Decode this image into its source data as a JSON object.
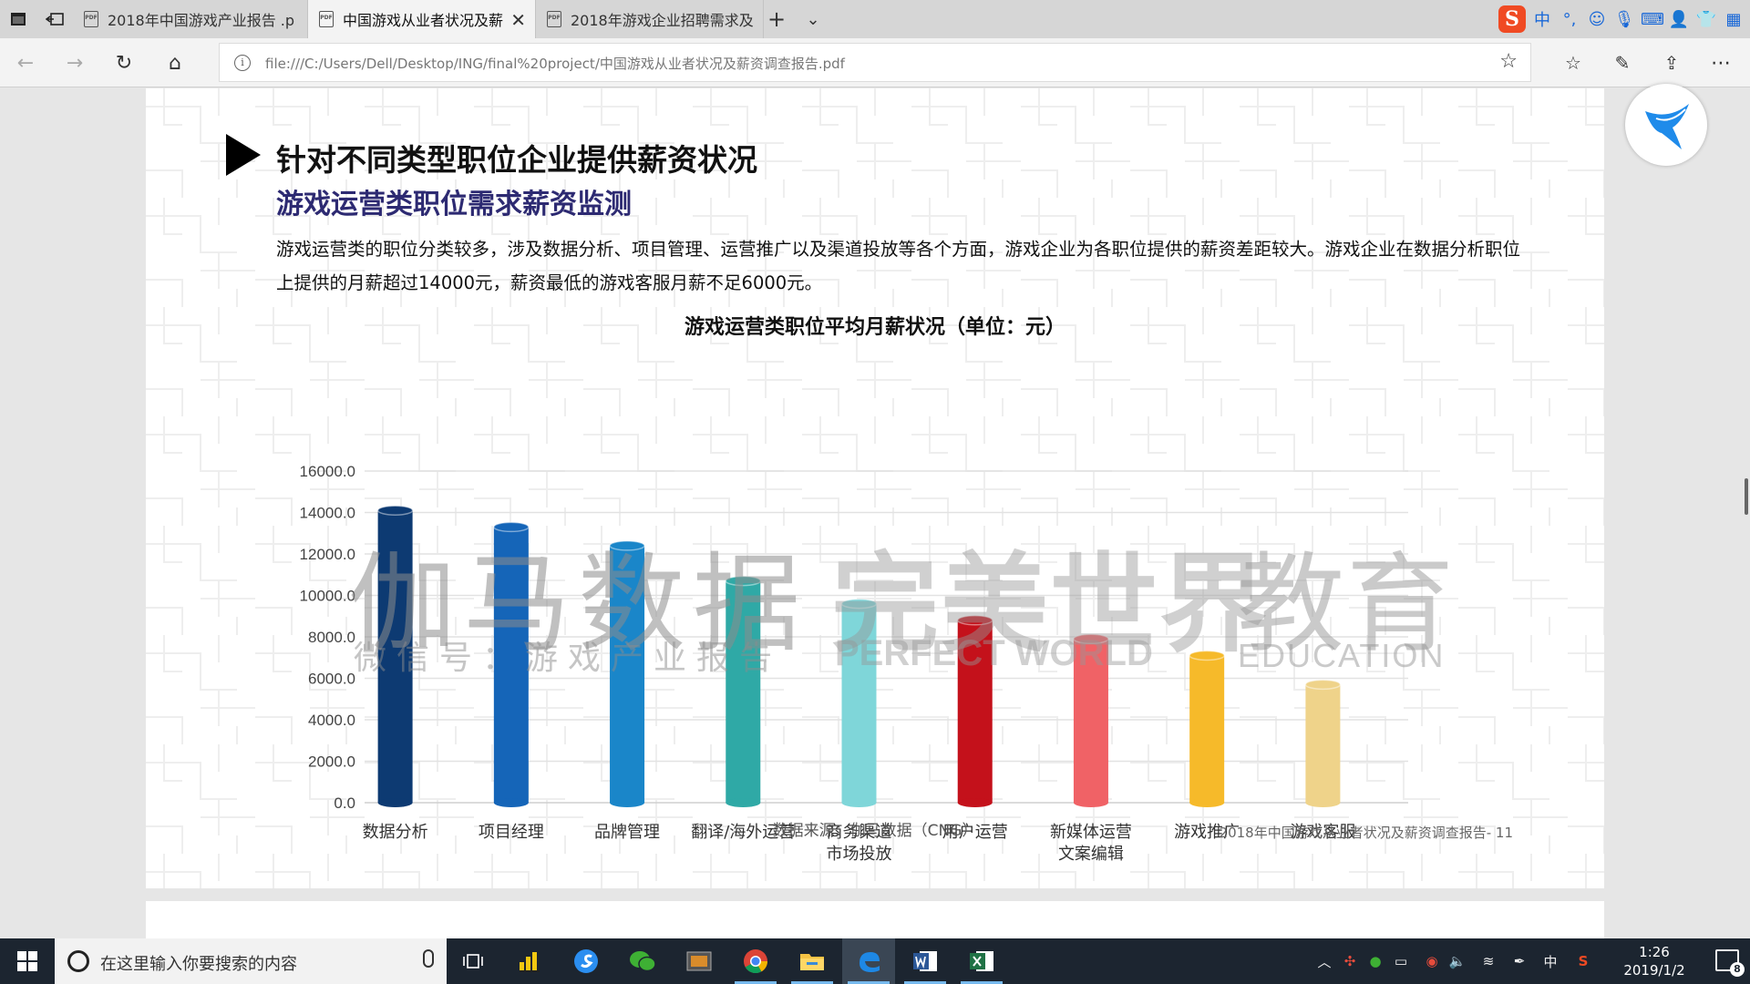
{
  "browser": {
    "tabs": [
      {
        "title": "2018年中国游戏产业报告 .p",
        "active": false
      },
      {
        "title": "中国游戏从业者状况及薪",
        "active": true
      },
      {
        "title": "2018年游戏企业招聘需求及",
        "active": false
      }
    ],
    "address": "file:///C:/Users/Dell/Desktop/ING/final%20project/中国游戏从业者状况及薪资调查报告.pdf"
  },
  "ime": {
    "lang": "中",
    "punct": "°,"
  },
  "document": {
    "section_title": "针对不同类型职位企业提供薪资状况",
    "subtitle": "游戏运营类职位需求薪资监测",
    "paragraph": "游戏运营类的职位分类较多，涉及数据分析、项目管理、运营推广以及渠道投放等各个方面，游戏企业为各职位提供的薪资差距较大。游戏企业在数据分析职位上提供的月薪超过14000元，薪资最低的游戏客服月薪不足6000元。",
    "source": "数据来源：伽马数据（CNG）",
    "footer": "2018年中国游戏从业者状况及薪资调查报告- 11",
    "watermarks": {
      "gamma": "伽马数据",
      "gamma_sub": "微信号：游戏产业报告",
      "pw_cn": "完美世界",
      "pw_en": "PERFECT WORLD",
      "edu_cn": "教育",
      "edu_en": "EDUCATION"
    }
  },
  "chart_data": {
    "type": "bar",
    "title": "游戏运营类职位平均月薪状况（单位：元）",
    "categories": [
      "数据分析",
      "项目经理",
      "品牌管理",
      "翻译/海外运营",
      "商务渠道\n市场投放",
      "用户运营",
      "新媒体运营\n文案编辑",
      "游戏推广",
      "游戏客服"
    ],
    "values": [
      14100,
      13300,
      12400,
      10700,
      9600,
      8800,
      7900,
      7100,
      5700
    ],
    "colors": [
      "#0d3a72",
      "#1565b8",
      "#1a86c9",
      "#2fa9a6",
      "#7fd6d9",
      "#c4111b",
      "#f06266",
      "#f6ba2a",
      "#efd38a"
    ],
    "y_ticks": [
      "0.0",
      "2000.0",
      "4000.0",
      "6000.0",
      "8000.0",
      "10000.0",
      "12000.0",
      "14000.0",
      "16000.0"
    ],
    "ylim": [
      0,
      16000
    ],
    "grid": true
  },
  "taskbar": {
    "search_placeholder": "在这里输入你要搜索的内容",
    "time": "1:26",
    "date": "2019/1/2",
    "ime": "中",
    "notifications": "8"
  }
}
